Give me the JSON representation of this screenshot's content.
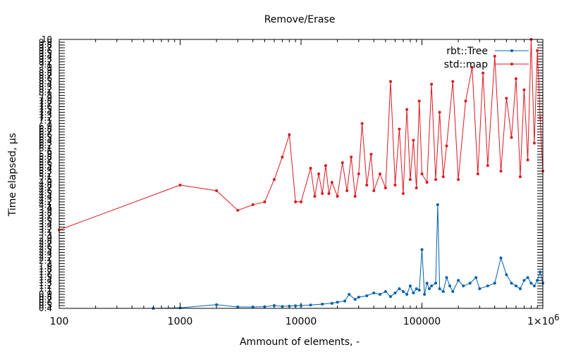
{
  "chart_data": {
    "type": "line",
    "title": "Remove/Erase",
    "xlabel": "Ammount of elements, -",
    "ylabel": "Time elapsed, µs",
    "x_scale": "log",
    "xlim": [
      100,
      1000000
    ],
    "x_ticks": [
      {
        "value": 100,
        "label": "100"
      },
      {
        "value": 1000,
        "label": "1000"
      },
      {
        "value": 10000,
        "label": "10000"
      },
      {
        "value": 100000,
        "label": "100000"
      },
      {
        "value": 1000000,
        "label": "1×10",
        "exp": "6"
      }
    ],
    "ylim": [
      0.4,
      10
    ],
    "y_ticks": [
      0.4,
      0.5,
      0.6,
      0.7,
      0.8,
      0.9,
      1,
      1.1,
      1.2,
      1.3,
      1.4,
      1.5,
      1.6,
      1.7,
      1.8,
      1.9,
      2,
      2.1,
      2.2,
      2.3,
      2.4,
      2.5,
      2.6,
      2.7,
      2.8,
      2.9,
      3,
      3.1,
      3.2,
      3.3,
      3.4,
      3.5,
      3.6,
      3.7,
      3.8,
      3.9,
      4,
      4.1,
      4.2,
      4.3,
      4.4,
      4.5,
      4.6,
      4.7,
      4.8,
      4.9,
      5,
      5.1,
      5.2,
      5.3,
      5.4,
      5.5,
      5.6,
      5.7,
      5.8,
      5.9,
      6,
      6.1,
      6.2,
      6.3,
      6.4,
      6.5,
      6.6,
      6.7,
      6.8,
      6.9,
      7,
      7.1,
      7.2,
      7.3,
      7.4,
      7.5,
      7.6,
      7.7,
      7.8,
      7.9,
      8,
      8.1,
      8.2,
      8.3,
      8.4,
      8.5,
      8.6,
      8.7,
      8.8,
      8.9,
      9,
      9.1,
      9.2,
      9.3,
      9.4,
      9.5,
      9.6,
      9.7,
      9.8,
      9.9,
      10
    ],
    "grid": false,
    "legend_position": "top-right",
    "series": [
      {
        "name": "rbt::Tree",
        "color": "#0060ad",
        "x": [
          600,
          1000,
          2000,
          3000,
          4000,
          5000,
          6000,
          7000,
          8000,
          9000,
          10000,
          12000,
          15000,
          18000,
          20000,
          23000,
          25000,
          28000,
          30000,
          35000,
          40000,
          45000,
          50000,
          55000,
          60000,
          65000,
          70000,
          75000,
          80000,
          85000,
          90000,
          95000,
          100000,
          105000,
          110000,
          115000,
          120000,
          130000,
          135000,
          140000,
          150000,
          160000,
          170000,
          180000,
          200000,
          220000,
          250000,
          280000,
          300000,
          350000,
          400000,
          450000,
          500000,
          550000,
          600000,
          650000,
          700000,
          750000,
          800000,
          850000,
          900000,
          950000,
          1000000
        ],
        "y": [
          0.4,
          0.42,
          0.53,
          0.45,
          0.45,
          0.46,
          0.5,
          0.47,
          0.48,
          0.49,
          0.5,
          0.52,
          0.55,
          0.58,
          0.62,
          0.66,
          0.9,
          0.72,
          0.8,
          0.85,
          0.95,
          0.9,
          1.0,
          0.82,
          0.95,
          1.1,
          1.0,
          0.9,
          1.2,
          0.95,
          1.1,
          1.05,
          2.5,
          0.9,
          1.3,
          1.1,
          1.2,
          1.3,
          4.1,
          1.1,
          1.0,
          1.5,
          1.2,
          1.0,
          1.4,
          1.2,
          1.3,
          1.5,
          1.1,
          1.2,
          1.3,
          2.2,
          1.6,
          1.3,
          1.2,
          1.1,
          1.4,
          1.5,
          1.3,
          1.2,
          1.4,
          1.7,
          1.3
        ]
      },
      {
        "name": "std::map",
        "color": "#dd181f",
        "x": [
          100,
          1000,
          2000,
          3000,
          4000,
          5000,
          6000,
          7000,
          8000,
          9000,
          10000,
          12000,
          13000,
          14000,
          15000,
          16000,
          17000,
          18000,
          20000,
          22000,
          24000,
          26000,
          28000,
          30000,
          32000,
          35000,
          38000,
          40000,
          45000,
          50000,
          55000,
          60000,
          65000,
          70000,
          75000,
          80000,
          85000,
          90000,
          95000,
          100000,
          110000,
          120000,
          130000,
          140000,
          150000,
          160000,
          180000,
          200000,
          230000,
          260000,
          290000,
          320000,
          350000,
          400000,
          450000,
          500000,
          550000,
          600000,
          650000,
          700000,
          750000,
          800000,
          850000,
          900000,
          950000,
          1000000
        ],
        "y": [
          3.2,
          4.8,
          4.6,
          3.9,
          4.1,
          4.2,
          5.0,
          5.8,
          6.6,
          4.2,
          4.2,
          5.4,
          4.4,
          5.2,
          4.5,
          5.5,
          4.5,
          4.9,
          4.4,
          5.6,
          4.6,
          5.8,
          4.4,
          5.2,
          7.0,
          4.8,
          5.9,
          4.6,
          5.2,
          4.7,
          8.5,
          4.8,
          6.8,
          4.5,
          7.5,
          5.0,
          6.4,
          4.7,
          7.8,
          5.2,
          4.9,
          8.4,
          5.0,
          7.4,
          5.1,
          6.2,
          8.5,
          5.0,
          7.8,
          9.0,
          5.2,
          8.8,
          5.5,
          9.4,
          5.3,
          7.9,
          6.5,
          8.6,
          5.1,
          8.2,
          5.7,
          10,
          6.3,
          9.6,
          7.2,
          5.3
        ]
      }
    ]
  }
}
